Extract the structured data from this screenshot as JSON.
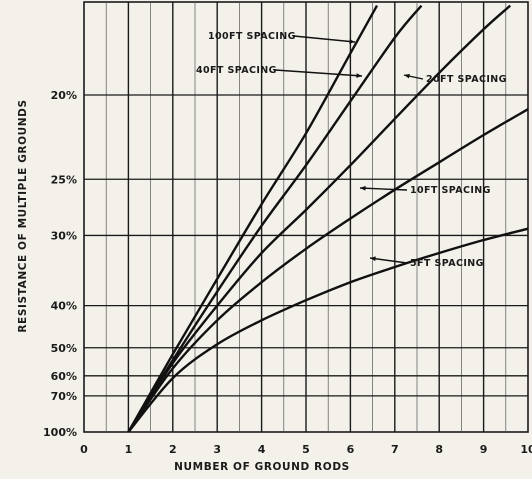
{
  "chart_data": {
    "type": "line",
    "title": "",
    "xlabel": "NUMBER OF GROUND RODS",
    "ylabel": "RESISTANCE OF MULTIPLE GROUNDS",
    "x_ticks": [
      "0",
      "1",
      "2",
      "3",
      "4",
      "5",
      "6",
      "7",
      "8",
      "9",
      "10"
    ],
    "xlim": [
      0,
      10
    ],
    "y_scale": "reciprocal",
    "y_ticks": [
      "100%",
      "70%",
      "60%",
      "50%",
      "40%",
      "30%",
      "25%",
      "20%"
    ],
    "y_tick_values": [
      100,
      70,
      60,
      50,
      40,
      30,
      25,
      20
    ],
    "ylim": [
      100,
      16
    ],
    "grid": true,
    "series": [
      {
        "name": "100FT SPACING",
        "x": [
          1,
          2,
          3,
          4,
          5,
          6,
          6.6
        ],
        "y": [
          100,
          52,
          35.5,
          27,
          22,
          18.2,
          16.5
        ]
      },
      {
        "name": "40FT SPACING",
        "x": [
          1,
          2,
          3,
          4,
          5,
          6,
          7,
          7.6
        ],
        "y": [
          100,
          54,
          37.5,
          29,
          24,
          20.3,
          17.6,
          16.5
        ]
      },
      {
        "name": "20FT SPACING",
        "x": [
          1,
          2,
          3,
          4,
          5,
          6,
          7,
          8,
          9,
          9.6
        ],
        "y": [
          100,
          55,
          40,
          32,
          27.5,
          24,
          21.2,
          19,
          17.3,
          16.5
        ]
      },
      {
        "name": "10FT SPACING",
        "x": [
          1,
          2,
          3,
          4,
          5,
          6,
          7,
          8,
          9,
          10
        ],
        "y": [
          100,
          57,
          43,
          36,
          31.5,
          28.3,
          25.8,
          23.8,
          22.1,
          20.7
        ]
      },
      {
        "name": "5FT SPACING",
        "x": [
          1,
          2,
          3,
          4,
          5,
          6,
          7,
          8,
          9,
          10
        ],
        "y": [
          100,
          61,
          49,
          43,
          39,
          36,
          33.8,
          32,
          30.5,
          29.3
        ]
      }
    ]
  }
}
